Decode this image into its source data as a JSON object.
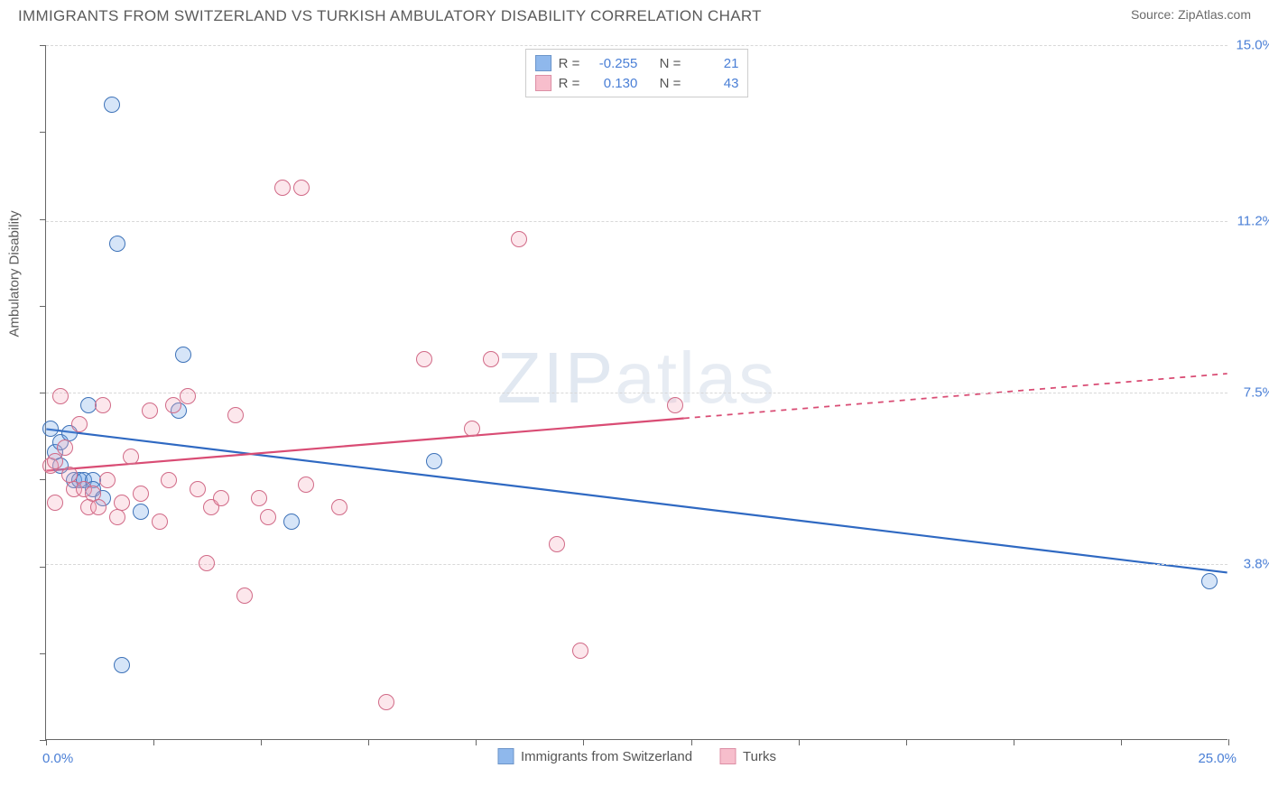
{
  "title": "IMMIGRANTS FROM SWITZERLAND VS TURKISH AMBULATORY DISABILITY CORRELATION CHART",
  "source_label": "Source: ",
  "source_name": "ZipAtlas.com",
  "y_axis_label": "Ambulatory Disability",
  "watermark": "ZIPatlas",
  "chart": {
    "type": "scatter",
    "xlim": [
      0.0,
      25.0
    ],
    "ylim": [
      0.0,
      15.0
    ],
    "x_min_label": "0.0%",
    "x_max_label": "25.0%",
    "y_ticks": [
      {
        "v": 3.8,
        "label": "3.8%"
      },
      {
        "v": 7.5,
        "label": "7.5%"
      },
      {
        "v": 11.2,
        "label": "11.2%"
      },
      {
        "v": 15.0,
        "label": "15.0%"
      }
    ],
    "x_tick_count": 11,
    "y_tick_count": 8,
    "background_color": "#ffffff",
    "grid_color": "#d8d8d8",
    "marker_radius": 9,
    "marker_fill_opacity": 0.28,
    "marker_stroke_width": 1.3,
    "line_width": 2.2
  },
  "series": [
    {
      "id": "swiss",
      "label": "Immigrants from Switzerland",
      "color": "#6aa1e6",
      "stroke": "#3d72b8",
      "line_color": "#2f69c2",
      "R": "-0.255",
      "N": "21",
      "trend": {
        "x1": 0.0,
        "y1": 6.7,
        "x2": 25.0,
        "y2": 3.6,
        "solid_until_x": 25.0
      },
      "points": [
        [
          0.1,
          6.7
        ],
        [
          0.2,
          6.2
        ],
        [
          0.3,
          5.9
        ],
        [
          0.3,
          6.4
        ],
        [
          0.5,
          6.6
        ],
        [
          0.6,
          5.6
        ],
        [
          0.7,
          5.6
        ],
        [
          0.8,
          5.6
        ],
        [
          0.9,
          7.2
        ],
        [
          1.0,
          5.6
        ],
        [
          1.0,
          5.4
        ],
        [
          1.2,
          5.2
        ],
        [
          1.4,
          13.7
        ],
        [
          1.5,
          10.7
        ],
        [
          1.6,
          1.6
        ],
        [
          2.0,
          4.9
        ],
        [
          2.8,
          7.1
        ],
        [
          2.9,
          8.3
        ],
        [
          5.2,
          4.7
        ],
        [
          8.2,
          6.0
        ],
        [
          24.6,
          3.4
        ]
      ]
    },
    {
      "id": "turks",
      "label": "Turks",
      "color": "#f5a9bb",
      "stroke": "#d16a87",
      "line_color": "#d94c74",
      "R": "0.130",
      "N": "43",
      "trend": {
        "x1": 0.0,
        "y1": 5.8,
        "x2": 25.0,
        "y2": 7.9,
        "solid_until_x": 13.5
      },
      "points": [
        [
          0.1,
          5.9
        ],
        [
          0.2,
          6.0
        ],
        [
          0.2,
          5.1
        ],
        [
          0.3,
          7.4
        ],
        [
          0.4,
          6.3
        ],
        [
          0.5,
          5.7
        ],
        [
          0.6,
          5.4
        ],
        [
          0.7,
          6.8
        ],
        [
          0.8,
          5.4
        ],
        [
          0.9,
          5.0
        ],
        [
          1.0,
          5.3
        ],
        [
          1.1,
          5.0
        ],
        [
          1.2,
          7.2
        ],
        [
          1.3,
          5.6
        ],
        [
          1.5,
          4.8
        ],
        [
          1.6,
          5.1
        ],
        [
          1.8,
          6.1
        ],
        [
          2.0,
          5.3
        ],
        [
          2.2,
          7.1
        ],
        [
          2.4,
          4.7
        ],
        [
          2.6,
          5.6
        ],
        [
          2.7,
          7.2
        ],
        [
          3.0,
          7.4
        ],
        [
          3.2,
          5.4
        ],
        [
          3.4,
          3.8
        ],
        [
          3.5,
          5.0
        ],
        [
          3.7,
          5.2
        ],
        [
          4.0,
          7.0
        ],
        [
          4.2,
          3.1
        ],
        [
          4.5,
          5.2
        ],
        [
          4.7,
          4.8
        ],
        [
          5.0,
          11.9
        ],
        [
          5.4,
          11.9
        ],
        [
          5.5,
          5.5
        ],
        [
          6.2,
          5.0
        ],
        [
          7.2,
          0.8
        ],
        [
          8.0,
          8.2
        ],
        [
          9.0,
          6.7
        ],
        [
          9.4,
          8.2
        ],
        [
          10.0,
          10.8
        ],
        [
          10.8,
          4.2
        ],
        [
          11.3,
          1.9
        ],
        [
          13.3,
          7.2
        ]
      ]
    }
  ],
  "legend_labels": {
    "R": "R =",
    "N": "N ="
  }
}
